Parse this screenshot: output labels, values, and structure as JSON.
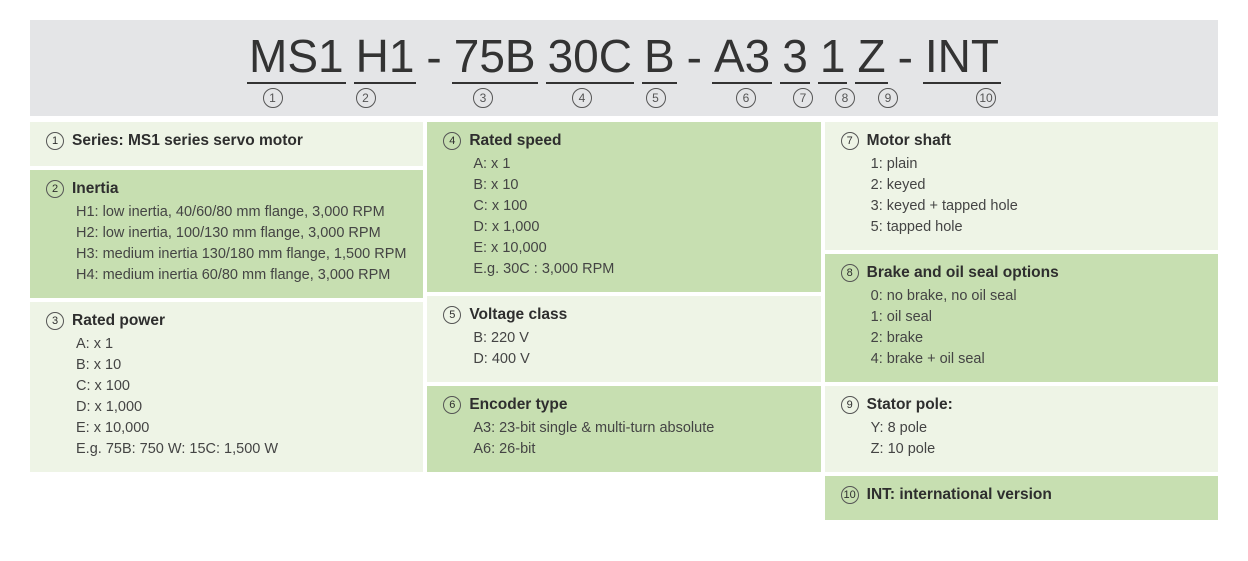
{
  "colors": {
    "header_bg": "#e4e5e7",
    "block_light": "#eef4e6",
    "block_dark": "#c7dfb1",
    "text": "#3a3a3a"
  },
  "code": {
    "segments": [
      "MS1",
      "H1",
      "75B",
      "30C",
      "B",
      "A3",
      "3",
      "1",
      "Z",
      "INT"
    ],
    "sep_after_index": [
      1,
      4,
      8
    ],
    "separator": "-"
  },
  "legend_columns": [
    [
      {
        "n": "1",
        "title": "Series: MS1 series servo motor",
        "lines": [],
        "shade": "light"
      },
      {
        "n": "2",
        "title": "Inertia",
        "lines": [
          "H1: low inertia, 40/60/80 mm flange, 3,000 RPM",
          "H2: low inertia, 100/130 mm flange, 3,000 RPM",
          "H3: medium inertia 130/180 mm flange, 1,500 RPM",
          "H4: medium inertia 60/80 mm flange, 3,000 RPM"
        ],
        "shade": "dark"
      },
      {
        "n": "3",
        "title": "Rated power",
        "lines": [
          "A: x 1",
          "B: x 10",
          "C: x 100",
          "D: x 1,000",
          "E: x 10,000",
          "E.g. 75B: 750 W: 15C: 1,500 W"
        ],
        "shade": "light"
      }
    ],
    [
      {
        "n": "4",
        "title": "Rated speed",
        "lines": [
          "A: x 1",
          "B: x 10",
          "C: x 100",
          "D: x 1,000",
          "E: x 10,000",
          "E.g. 30C : 3,000 RPM"
        ],
        "shade": "dark"
      },
      {
        "n": "5",
        "title": "Voltage class",
        "lines": [
          "B: 220 V",
          "D: 400 V"
        ],
        "shade": "light"
      },
      {
        "n": "6",
        "title": "Encoder type",
        "lines": [
          "A3: 23-bit single & multi-turn absolute",
          "A6: 26-bit"
        ],
        "shade": "dark"
      }
    ],
    [
      {
        "n": "7",
        "title": "Motor shaft",
        "lines": [
          "1: plain",
          "2: keyed",
          "3: keyed + tapped hole",
          "5: tapped hole"
        ],
        "shade": "light"
      },
      {
        "n": "8",
        "title": "Brake and oil seal options",
        "lines": [
          "0: no brake, no oil seal",
          "1: oil seal",
          "2: brake",
          "4: brake + oil seal"
        ],
        "shade": "dark"
      },
      {
        "n": "9",
        "title": "Stator pole:",
        "lines": [
          "Y: 8 pole",
          "Z: 10 pole"
        ],
        "shade": "light"
      },
      {
        "n": "10",
        "title": "INT: international version",
        "lines": [],
        "shade": "dark"
      }
    ]
  ]
}
